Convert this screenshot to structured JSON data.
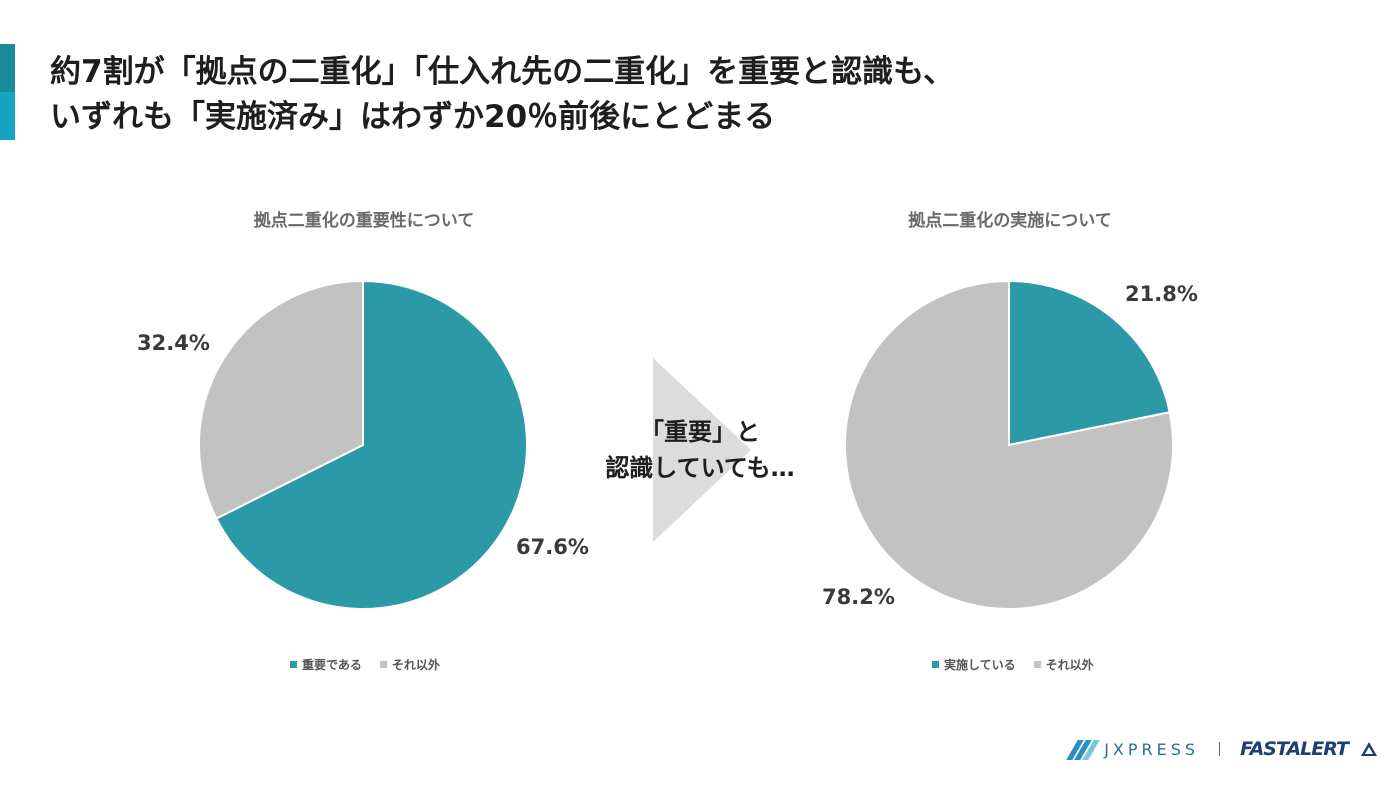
{
  "headline": {
    "line1": "約7割が「拠点の二重化」「仕入れ先の二重化」を重要と認識も、",
    "line2": "いずれも「実施済み」はわずか20％前後にとどまる"
  },
  "arrow_text": {
    "line1": "「重要」と",
    "line2": "認識していても…"
  },
  "colors": {
    "teal": "#2b9aa6",
    "gray": "#c2c2c2",
    "accent_dark": "#1b8a9c",
    "accent_light": "#14a3c0"
  },
  "chart_data": [
    {
      "type": "pie",
      "title": "拠点二重化の重要性について",
      "categories": [
        "重要である",
        "それ以外"
      ],
      "values": [
        67.6,
        32.4
      ],
      "labels": [
        "67.6%",
        "32.4%"
      ],
      "colors": [
        "#2b9aa6",
        "#c2c2c2"
      ],
      "legend": "bottom"
    },
    {
      "type": "pie",
      "title": "拠点二重化の実施について",
      "categories": [
        "実施している",
        "それ以外"
      ],
      "values": [
        21.8,
        78.2
      ],
      "labels": [
        "21.8%",
        "78.2%"
      ],
      "colors": [
        "#2b9aa6",
        "#c2c2c2"
      ],
      "legend": "bottom"
    }
  ],
  "footer": {
    "brand1_icon": "jxpress-logo-icon",
    "brand1": "JXPRESS",
    "brand2": "FASTALERT",
    "brand2_icon": "fastalert-logo-icon"
  }
}
